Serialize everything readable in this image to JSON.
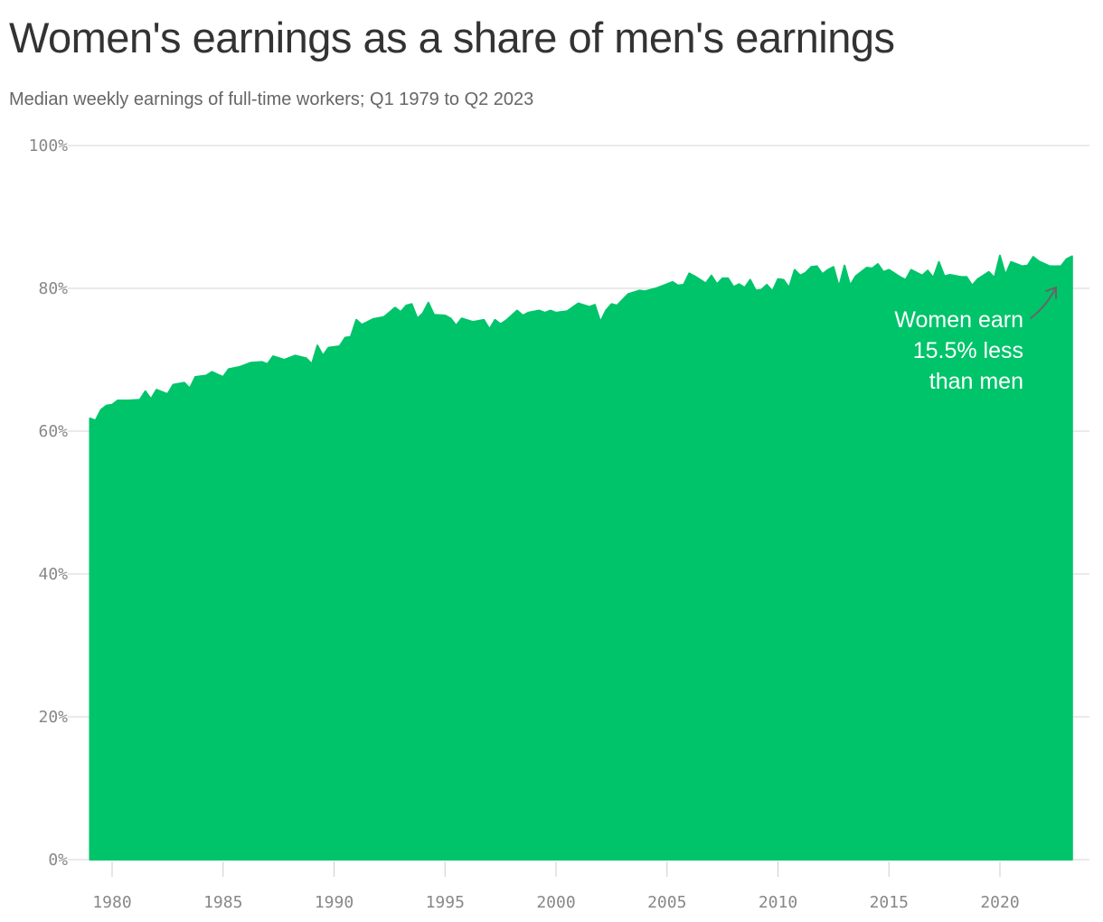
{
  "title": "Women's earnings as a share of men's earnings",
  "subtitle": "Median weekly earnings of full-time workers; Q1 1979 to Q2 2023",
  "chart_data": {
    "type": "area",
    "ylim": [
      0,
      100
    ],
    "yticks": [
      0,
      20,
      40,
      60,
      80,
      100
    ],
    "ytick_labels": [
      "0%",
      "20%",
      "40%",
      "60%",
      "80%",
      "100%"
    ],
    "xticks": [
      1980,
      1985,
      1990,
      1995,
      2000,
      2005,
      2010,
      2015,
      2020
    ],
    "xtick_labels": [
      "1980",
      "1985",
      "1990",
      "1995",
      "2000",
      "2005",
      "2010",
      "2015",
      "2020"
    ],
    "grid": "horizontal",
    "color": "#00c46a",
    "annotation": {
      "lines": [
        "Women earn",
        "15.5% less",
        "than men"
      ],
      "arrow_color": "#666666"
    },
    "points": [
      [
        "1979 Q1",
        61.8
      ],
      [
        "1979 Q2",
        61.5
      ],
      [
        "1979 Q3",
        63.0
      ],
      [
        "1979 Q4",
        63.6
      ],
      [
        "1980 Q1",
        63.7
      ],
      [
        "1980 Q2",
        64.3
      ],
      [
        "1980 Q4",
        64.3
      ],
      [
        "1981 Q2",
        64.4
      ],
      [
        "1981 Q3",
        65.6
      ],
      [
        "1981 Q4",
        64.5
      ],
      [
        "1982 Q1",
        65.8
      ],
      [
        "1982 Q3",
        65.2
      ],
      [
        "1982 Q4",
        66.5
      ],
      [
        "1983 Q2",
        66.8
      ],
      [
        "1983 Q3",
        66.0
      ],
      [
        "1983 Q4",
        67.6
      ],
      [
        "1984 Q2",
        67.8
      ],
      [
        "1984 Q3",
        68.3
      ],
      [
        "1985 Q1",
        67.6
      ],
      [
        "1985 Q2",
        68.7
      ],
      [
        "1985 Q4",
        69.0
      ],
      [
        "1986 Q2",
        69.6
      ],
      [
        "1986 Q4",
        69.7
      ],
      [
        "1987 Q1",
        69.4
      ],
      [
        "1987 Q2",
        70.5
      ],
      [
        "1987 Q4",
        70.0
      ],
      [
        "1988 Q2",
        70.6
      ],
      [
        "1988 Q4",
        70.2
      ],
      [
        "1989 Q1",
        69.4
      ],
      [
        "1989 Q2",
        72.0
      ],
      [
        "1989 Q3",
        70.6
      ],
      [
        "1989 Q4",
        71.7
      ],
      [
        "1990 Q2",
        71.9
      ],
      [
        "1990 Q3",
        73.1
      ],
      [
        "1990 Q4",
        73.2
      ],
      [
        "1991 Q1",
        75.6
      ],
      [
        "1991 Q2",
        74.9
      ],
      [
        "1991 Q4",
        75.7
      ],
      [
        "1992 Q2",
        76.0
      ],
      [
        "1992 Q4",
        77.3
      ],
      [
        "1993 Q1",
        76.7
      ],
      [
        "1993 Q2",
        77.6
      ],
      [
        "1993 Q3",
        77.8
      ],
      [
        "1993 Q4",
        75.8
      ],
      [
        "1994 Q1",
        76.5
      ],
      [
        "1994 Q2",
        78.0
      ],
      [
        "1994 Q3",
        76.3
      ],
      [
        "1995 Q1",
        76.2
      ],
      [
        "1995 Q2",
        75.8
      ],
      [
        "1995 Q3",
        74.8
      ],
      [
        "1995 Q4",
        75.8
      ],
      [
        "1996 Q2",
        75.3
      ],
      [
        "1996 Q4",
        75.6
      ],
      [
        "1997 Q1",
        74.3
      ],
      [
        "1997 Q2",
        75.6
      ],
      [
        "1997 Q3",
        75.0
      ],
      [
        "1997 Q4",
        75.5
      ],
      [
        "1998 Q2",
        76.9
      ],
      [
        "1998 Q3",
        76.2
      ],
      [
        "1998 Q4",
        76.6
      ],
      [
        "1999 Q2",
        76.9
      ],
      [
        "1999 Q3",
        76.6
      ],
      [
        "1999 Q4",
        76.9
      ],
      [
        "2000 Q1",
        76.6
      ],
      [
        "2000 Q3",
        76.8
      ],
      [
        "2001 Q1",
        77.9
      ],
      [
        "2001 Q3",
        77.4
      ],
      [
        "2001 Q4",
        77.7
      ],
      [
        "2002 Q1",
        75.3
      ],
      [
        "2002 Q2",
        76.9
      ],
      [
        "2002 Q3",
        77.8
      ],
      [
        "2002 Q4",
        77.6
      ],
      [
        "2003 Q2",
        79.2
      ],
      [
        "2003 Q4",
        79.7
      ],
      [
        "2004 Q1",
        79.6
      ],
      [
        "2004 Q3",
        80.0
      ],
      [
        "2005 Q1",
        80.6
      ],
      [
        "2005 Q2",
        80.9
      ],
      [
        "2005 Q3",
        80.4
      ],
      [
        "2005 Q4",
        80.5
      ],
      [
        "2006 Q1",
        82.1
      ],
      [
        "2006 Q2",
        81.7
      ],
      [
        "2006 Q4",
        80.7
      ],
      [
        "2007 Q1",
        81.8
      ],
      [
        "2007 Q2",
        80.6
      ],
      [
        "2007 Q3",
        81.4
      ],
      [
        "2007 Q4",
        81.4
      ],
      [
        "2008 Q1",
        80.2
      ],
      [
        "2008 Q2",
        80.6
      ],
      [
        "2008 Q3",
        80.1
      ],
      [
        "2008 Q4",
        81.2
      ],
      [
        "2009 Q1",
        79.7
      ],
      [
        "2009 Q2",
        79.8
      ],
      [
        "2009 Q3",
        80.5
      ],
      [
        "2009 Q4",
        79.6
      ],
      [
        "2010 Q1",
        81.3
      ],
      [
        "2010 Q2",
        81.2
      ],
      [
        "2010 Q3",
        80.1
      ],
      [
        "2010 Q4",
        82.6
      ],
      [
        "2011 Q1",
        81.8
      ],
      [
        "2011 Q2",
        82.2
      ],
      [
        "2011 Q3",
        83.0
      ],
      [
        "2011 Q4",
        83.1
      ],
      [
        "2012 Q1",
        82.0
      ],
      [
        "2012 Q2",
        82.6
      ],
      [
        "2012 Q3",
        83.0
      ],
      [
        "2012 Q4",
        80.2
      ],
      [
        "2013 Q1",
        83.2
      ],
      [
        "2013 Q2",
        80.4
      ],
      [
        "2013 Q3",
        81.7
      ],
      [
        "2013 Q4",
        82.3
      ],
      [
        "2014 Q1",
        82.9
      ],
      [
        "2014 Q2",
        82.8
      ],
      [
        "2014 Q3",
        83.4
      ],
      [
        "2014 Q4",
        82.3
      ],
      [
        "2015 Q1",
        82.6
      ],
      [
        "2015 Q3",
        81.6
      ],
      [
        "2015 Q4",
        81.2
      ],
      [
        "2016 Q1",
        82.6
      ],
      [
        "2016 Q2",
        82.2
      ],
      [
        "2016 Q3",
        81.8
      ],
      [
        "2016 Q4",
        82.5
      ],
      [
        "2017 Q1",
        81.5
      ],
      [
        "2017 Q2",
        83.7
      ],
      [
        "2017 Q3",
        81.7
      ],
      [
        "2017 Q4",
        81.9
      ],
      [
        "2018 Q2",
        81.6
      ],
      [
        "2018 Q3",
        81.6
      ],
      [
        "2018 Q4",
        80.4
      ],
      [
        "2019 Q1",
        81.3
      ],
      [
        "2019 Q2",
        81.8
      ],
      [
        "2019 Q3",
        82.3
      ],
      [
        "2019 Q4",
        81.5
      ],
      [
        "2020 Q1",
        84.6
      ],
      [
        "2020 Q2",
        81.9
      ],
      [
        "2020 Q3",
        83.7
      ],
      [
        "2020 Q4",
        83.4
      ],
      [
        "2021 Q1",
        83.1
      ],
      [
        "2021 Q2",
        83.2
      ],
      [
        "2021 Q3",
        84.4
      ],
      [
        "2021 Q4",
        83.8
      ],
      [
        "2022 Q2",
        83.1
      ],
      [
        "2022 Q4",
        83.1
      ],
      [
        "2023 Q1",
        84.1
      ],
      [
        "2023 Q2",
        84.5
      ]
    ]
  }
}
